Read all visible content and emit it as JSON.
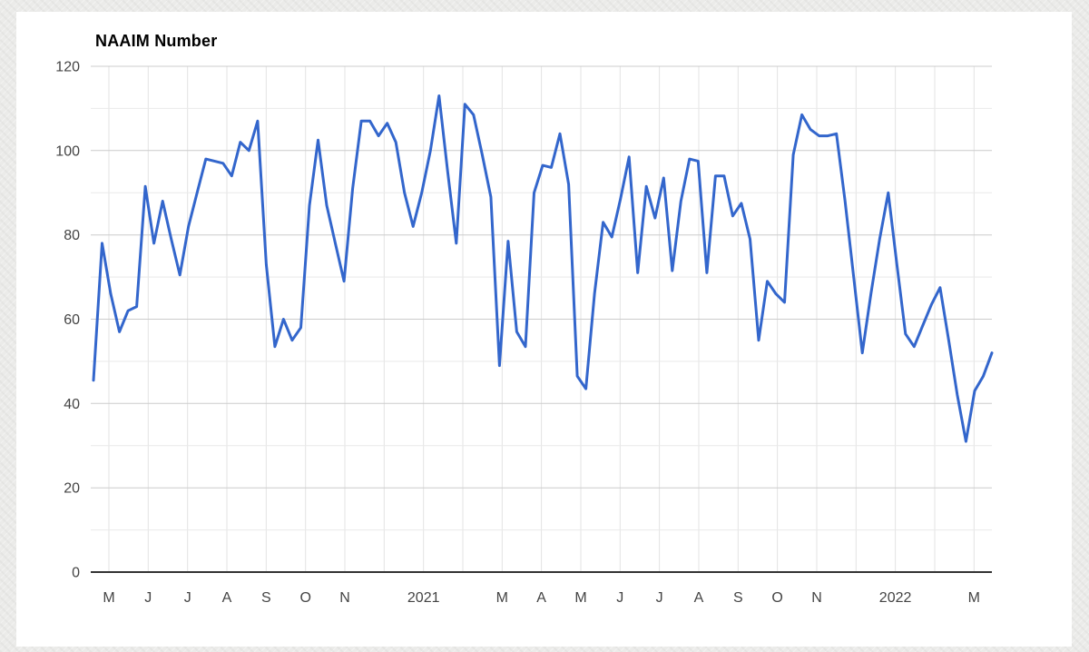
{
  "page": {
    "background_color": "#ebebe9",
    "card_background": "#ffffff"
  },
  "chart_style": {
    "line_color": "#3366cc",
    "axis_text_color": "#444444",
    "title_color": "#000000",
    "major_grid_color": "#cccccc",
    "minor_grid_color": "#e9e9e9",
    "vertical_grid_color": "#e3e3e3",
    "baseline_color": "#333333"
  },
  "chart_data": {
    "type": "line",
    "title": "NAAIM Number",
    "series_name": "NAAIM Number",
    "frequency": "weekly",
    "legend": "none",
    "grid": true,
    "ylim": [
      0,
      120
    ],
    "y_ticks": [
      0,
      20,
      40,
      60,
      80,
      100,
      120
    ],
    "x_tick_labels": [
      "M",
      "J",
      "J",
      "A",
      "S",
      "O",
      "N",
      "",
      "2021",
      "",
      "M",
      "A",
      "M",
      "J",
      "J",
      "A",
      "S",
      "O",
      "N",
      "",
      "2022",
      "",
      "M"
    ],
    "values": [
      45.5,
      78,
      66,
      57,
      62,
      63,
      91.5,
      78,
      88,
      79,
      70.5,
      82,
      90,
      98,
      97.5,
      97,
      94,
      102,
      100,
      107,
      73,
      53.5,
      60,
      55,
      58,
      87,
      102.5,
      87,
      78,
      69,
      91,
      107,
      107,
      103.5,
      106.5,
      102,
      90,
      82,
      90,
      100,
      113,
      95,
      78,
      111,
      108.5,
      99,
      89,
      49,
      78.5,
      57,
      53.5,
      90,
      96.5,
      96,
      104,
      92,
      46.5,
      43.5,
      66,
      83,
      79.5,
      88.5,
      98.5,
      71,
      91.5,
      84,
      93.5,
      71.5,
      88,
      98,
      97.5,
      71,
      94,
      94,
      84.5,
      87.5,
      79,
      55,
      69,
      66,
      64,
      99,
      108.5,
      105,
      103.5,
      103.5,
      104,
      88,
      70,
      52,
      66,
      79,
      90,
      73,
      56.5,
      53.5,
      58.5,
      63.5,
      67.5,
      55,
      42,
      31,
      43,
      46.5,
      52
    ]
  }
}
